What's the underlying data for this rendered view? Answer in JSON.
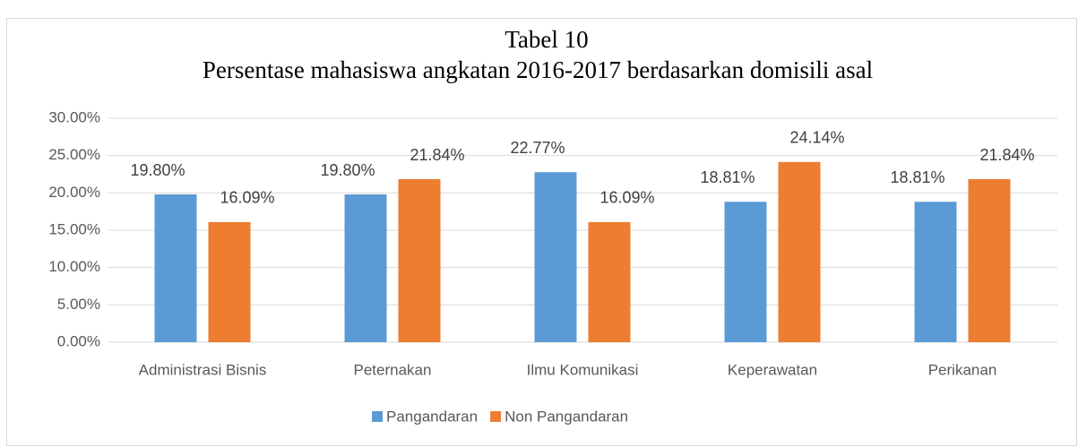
{
  "chart_data": {
    "type": "bar",
    "title": "Tabel 10",
    "subtitle": "Persentase mahasiswa angkatan 2016-2017 berdasarkan domisili asal",
    "categories": [
      "Administrasi Bisnis",
      "Peternakan",
      "Ilmu Komunikasi",
      "Keperawatan",
      "Perikanan"
    ],
    "series": [
      {
        "name": "Pangandaran",
        "color": "#5b9bd5",
        "values": [
          19.8,
          19.8,
          22.77,
          18.81,
          18.81
        ],
        "value_labels": [
          "19.80%",
          "19.80%",
          "22.77%",
          "18.81%",
          "18.81%"
        ]
      },
      {
        "name": "Non Pangandaran",
        "color": "#ed7d31",
        "values": [
          16.09,
          21.84,
          16.09,
          24.14,
          21.84
        ],
        "value_labels": [
          "16.09%",
          "21.84%",
          "16.09%",
          "24.14%",
          "21.84%"
        ]
      }
    ],
    "ylim": [
      0,
      30
    ],
    "yticks": [
      {
        "value": 0,
        "label": "0.00%"
      },
      {
        "value": 5,
        "label": "5.00%"
      },
      {
        "value": 10,
        "label": "10.00%"
      },
      {
        "value": 15,
        "label": "15.00%"
      },
      {
        "value": 20,
        "label": "20.00%"
      },
      {
        "value": 25,
        "label": "25.00%"
      },
      {
        "value": 30,
        "label": "30.00%"
      }
    ],
    "grid": true,
    "legend": "bottom"
  }
}
